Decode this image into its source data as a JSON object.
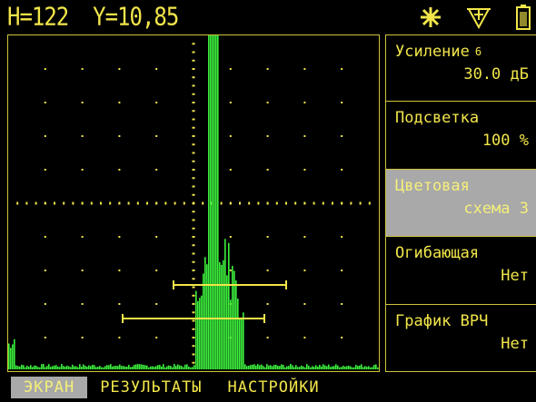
{
  "readout": {
    "text": "H=122  Y=10,85"
  },
  "status": {
    "icons": [
      "sun-icon",
      "probe-icon",
      "battery-icon"
    ]
  },
  "sidebar": {
    "items": [
      {
        "label": "Усиление",
        "sup": "6",
        "value": "30.0 дБ",
        "selected": false
      },
      {
        "label": "Подсветка",
        "value": "100 %",
        "selected": false
      },
      {
        "label": "Цветовая",
        "value": "схема 3",
        "selected": true
      },
      {
        "label": "Огибающая",
        "value": "Нет",
        "selected": false
      },
      {
        "label": "График ВРЧ",
        "value": "Нет",
        "selected": false
      }
    ]
  },
  "tabs": [
    {
      "label": "ЭКРАН",
      "active": true
    },
    {
      "label": "РЕЗУЛЬТАТЫ",
      "active": false
    },
    {
      "label": "НАСТРОЙКИ",
      "active": false
    }
  ],
  "colors": {
    "trace": "#3cf03c",
    "accent": "#f2e64a",
    "selected_bg": "#a9a9a9"
  }
}
